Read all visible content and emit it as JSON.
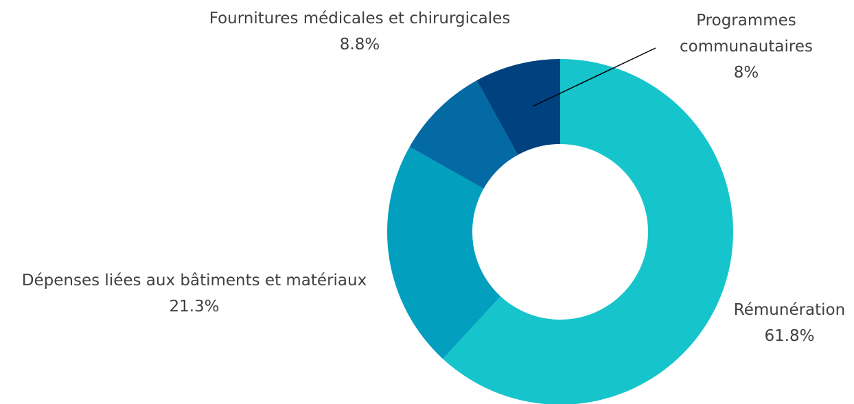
{
  "chart_data": {
    "type": "donut",
    "categories": [
      "Rémunération",
      "Dépenses liées aux bâtiments et matériaux",
      "Fournitures médicales et chirurgicales",
      "Programmes communautaires"
    ],
    "values": [
      61.8,
      21.3,
      8.8,
      8
    ],
    "value_labels": [
      "61.8%",
      "21.3%",
      "8.8%",
      "8%"
    ],
    "colors": [
      "#16c5cb",
      "#029fbe",
      "#036aa4",
      "#00427f"
    ]
  }
}
